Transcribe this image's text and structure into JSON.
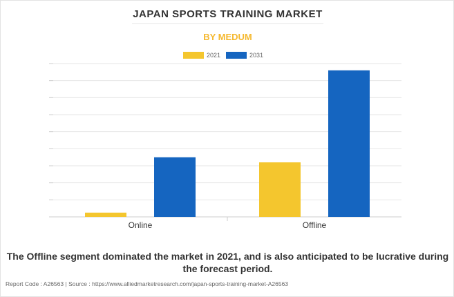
{
  "chart_data": {
    "type": "bar",
    "title": "JAPAN SPORTS TRAINING MARKET",
    "subtitle": "BY MEDUM",
    "categories": [
      "Online",
      "Offline"
    ],
    "series": [
      {
        "name": "2021",
        "color": "#f4c62e",
        "values": [
          2.5,
          32
        ]
      },
      {
        "name": "2031",
        "color": "#1565c0",
        "values": [
          35,
          86
        ]
      }
    ],
    "ylim": [
      0,
      90
    ],
    "yticks": [
      0,
      10,
      20,
      30,
      40,
      50,
      60,
      70,
      80,
      90
    ],
    "ytick_labels_visible": false,
    "grid": true,
    "legend": "top-center"
  },
  "caption": "The Offline segment dominated the market in 2021, and is also anticipated to be lucrative during the forecast period.",
  "footer": {
    "report_code": "Report Code : A26563",
    "separator": "|",
    "source": "Source : https://www.alliedmarketresearch.com/japan-sports-training-market-A26563"
  }
}
